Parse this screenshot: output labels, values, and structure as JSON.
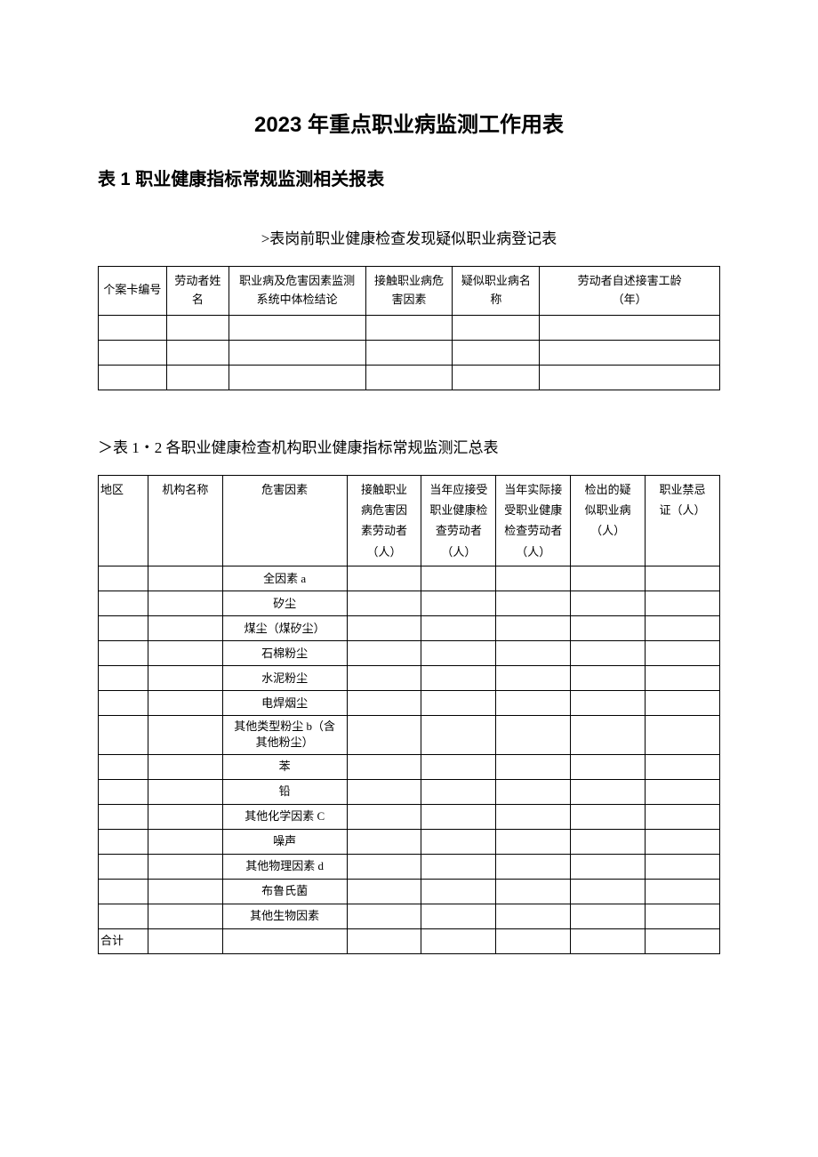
{
  "main_title": "2023 年重点职业病监测工作用表",
  "section_title": "表 1 职业健康指标常规监测相关报表",
  "table1": {
    "title": ">表岗前职业健康检查发现疑似职业病登记表",
    "headers": {
      "c1": "个案卡编号",
      "c2": "劳动者姓\n名",
      "c3": "职业病及危害因素监测\n系统中体检结论",
      "c4": "接触职业病危\n害因素",
      "c5": "疑似职业病名\n称",
      "c6": "劳动者自述接害工龄\n（年）"
    },
    "row_count": 3
  },
  "table2": {
    "title": "＞表 1・2 各职业健康检查机构职业健康指标常规监测汇总表",
    "headers": {
      "c1": "地区",
      "c2": "机构名称",
      "c3": "危害因素",
      "c4": "接触职业\n病危害因\n素劳动者\n（人）",
      "c5": "当年应接受\n职业健康检\n查劳动者\n（人）",
      "c6": "当年实际接\n受职业健康\n检查劳动者\n（人）",
      "c7": "检出的疑\n似职业病\n（人）",
      "c8": "职业禁忌\n证（人）"
    },
    "factors": [
      "全因素 a",
      "矽尘",
      "煤尘（煤矽尘）",
      "石棉粉尘",
      "水泥粉尘",
      "电焊烟尘",
      "其他类型粉尘 b（含\n其他粉尘）",
      "苯",
      "铅",
      "其他化学因素 C",
      "噪声",
      "其他物理因素 d",
      "布鲁氏菌",
      "其他生物因素"
    ],
    "total_label": "合计"
  }
}
